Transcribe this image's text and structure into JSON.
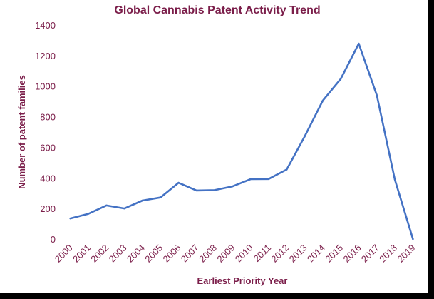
{
  "chart_data": {
    "type": "line",
    "title": "Global Cannabis Patent Activity Trend",
    "xlabel": "Earliest Priority Year",
    "ylabel": "Number of patent families",
    "ylim": [
      0,
      1400
    ],
    "yticks": [
      "0",
      "200",
      "400",
      "600",
      "800",
      "1000",
      "1200",
      "1400"
    ],
    "categories": [
      "2000",
      "2001",
      "2002",
      "2003",
      "2004",
      "2005",
      "2006",
      "2007",
      "2008",
      "2009",
      "2010",
      "2011",
      "2012",
      "2013",
      "2014",
      "2015",
      "2016",
      "2017",
      "2018",
      "2019"
    ],
    "series": [
      {
        "values": [
          135,
          165,
          220,
          200,
          252,
          272,
          368,
          318,
          320,
          345,
          392,
          393,
          455,
          672,
          905,
          1048,
          1278,
          940,
          390,
          0
        ],
        "color": "#4472c4"
      }
    ],
    "grid": false,
    "legend": "none"
  }
}
